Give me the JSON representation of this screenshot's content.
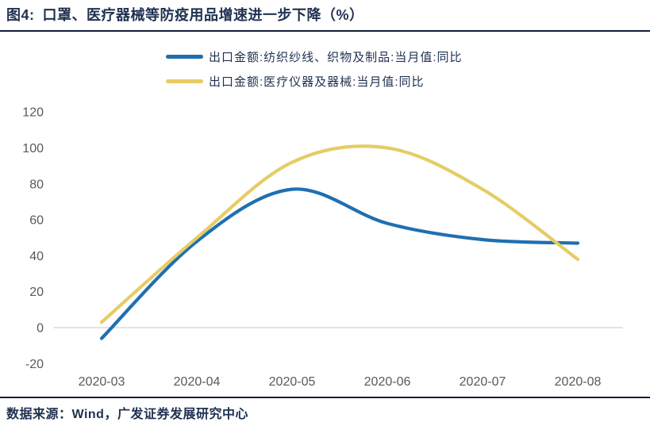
{
  "header": {
    "figure_label": "图4:",
    "title": "口罩、医疗器械等防疫用品增速进一步下降（%）"
  },
  "footer": {
    "source": "数据来源：Wind，广发证券发展研究中心"
  },
  "colors": {
    "series_blue": "#1F6FB2",
    "series_yellow": "#E6CC66",
    "title_text": "#1F3150",
    "tick_label": "#595959",
    "zero_line": "#D9D9D9",
    "rule_line": "#121E38"
  },
  "chart_data": {
    "type": "line",
    "title": "口罩、医疗器械等防疫用品增速进一步下降（%）",
    "categories": [
      "2020-03",
      "2020-04",
      "2020-05",
      "2020-06",
      "2020-07",
      "2020-08"
    ],
    "series": [
      {
        "name": "出口金额:纺织纱线、织物及制品:当月值:同比",
        "color": "#1F6FB2",
        "values": [
          -6,
          48,
          77,
          58,
          49,
          47
        ]
      },
      {
        "name": "出口金额:医疗仪器及器械:当月值:同比",
        "color": "#E6CC66",
        "values": [
          3,
          50,
          92,
          100,
          77,
          38
        ]
      }
    ],
    "xlabel": "",
    "ylabel": "",
    "ylim": [
      -20,
      120
    ],
    "yticks": [
      120,
      100,
      80,
      60,
      40,
      20,
      0,
      -20
    ],
    "grid": "zero-line-only",
    "legend_position": "top-center",
    "smooth_curves": true
  }
}
